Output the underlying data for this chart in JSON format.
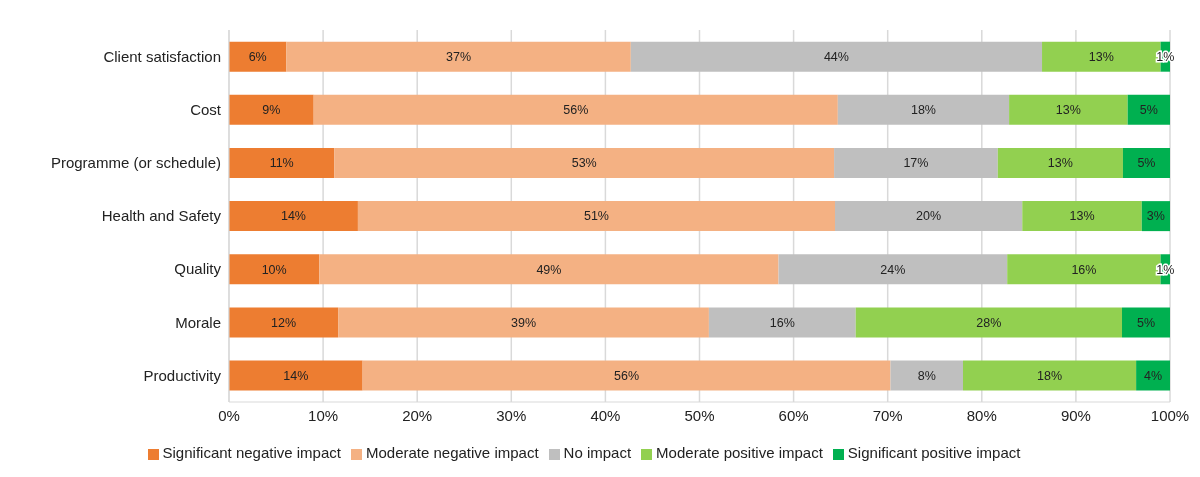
{
  "chart_data": {
    "type": "bar",
    "orientation": "horizontal",
    "stacked": true,
    "categories": [
      "Client satisfaction",
      "Cost",
      "Programme (or schedule)",
      "Health and Safety",
      "Quality",
      "Morale",
      "Productivity"
    ],
    "series": [
      {
        "name": "Significant negative impact",
        "color": "#ed7d31",
        "values": [
          6.1,
          9.0,
          11.2,
          13.7,
          9.6,
          11.6,
          14.2
        ],
        "value_labels": [
          "6%",
          "9%",
          "11%",
          "14%",
          "10%",
          "12%",
          "14%"
        ]
      },
      {
        "name": "Moderate negative impact",
        "color": "#f4b183",
        "values": [
          36.6,
          55.7,
          53.1,
          50.7,
          48.8,
          39.4,
          56.1
        ],
        "value_labels": [
          "37%",
          "56%",
          "53%",
          "51%",
          "49%",
          "39%",
          "56%"
        ]
      },
      {
        "name": "No impact",
        "color": "#bfbfbf",
        "values": [
          43.7,
          18.2,
          17.4,
          19.9,
          24.3,
          15.6,
          7.7
        ],
        "value_labels": [
          "44%",
          "18%",
          "17%",
          "20%",
          "24%",
          "16%",
          "8%"
        ]
      },
      {
        "name": "Moderate positive impact",
        "color": "#92d050",
        "values": [
          12.6,
          12.6,
          13.3,
          12.7,
          16.3,
          28.3,
          18.4
        ],
        "value_labels": [
          "13%",
          "13%",
          "13%",
          "13%",
          "16%",
          "28%",
          "18%"
        ]
      },
      {
        "name": "Significant positive impact",
        "color": "#00b050",
        "values": [
          1.0,
          4.5,
          5.0,
          3.0,
          1.0,
          5.1,
          3.6
        ],
        "value_labels": [
          "1%",
          "5%",
          "5%",
          "3%",
          "1%",
          "5%",
          "4%"
        ]
      }
    ],
    "xlim": [
      0,
      100
    ],
    "xticks": [
      {
        "value": 0,
        "label": "0%"
      },
      {
        "value": 10,
        "label": "10%"
      },
      {
        "value": 20,
        "label": "20%"
      },
      {
        "value": 30,
        "label": "30%"
      },
      {
        "value": 40,
        "label": "40%"
      },
      {
        "value": 50,
        "label": "50%"
      },
      {
        "value": 60,
        "label": "60%"
      },
      {
        "value": 70,
        "label": "70%"
      },
      {
        "value": 80,
        "label": "80%"
      },
      {
        "value": 90,
        "label": "90%"
      },
      {
        "value": 100,
        "label": "100%"
      }
    ],
    "grid": "x",
    "legend": "bottom"
  }
}
